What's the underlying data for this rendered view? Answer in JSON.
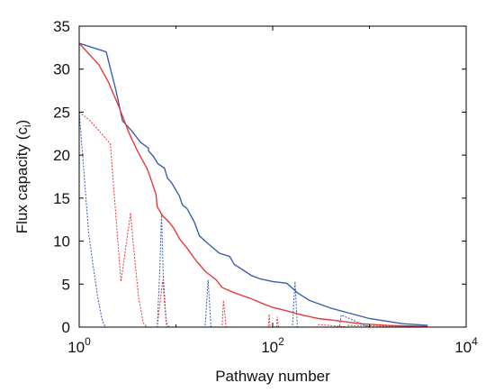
{
  "chart_data": {
    "type": "line",
    "title": "",
    "xlabel": "Pathway number",
    "ylabel_main": "Flux capacity (c",
    "ylabel_sub": "i",
    "ylabel_close": ")",
    "xscale": "log",
    "xlim": [
      1,
      10000
    ],
    "ylim": [
      0,
      35
    ],
    "grid": false,
    "legend": "none",
    "x_ticks": [
      {
        "value": 1,
        "base": "10",
        "exp": "0"
      },
      {
        "value": 100,
        "base": "10",
        "exp": "2"
      },
      {
        "value": 10000,
        "base": "10",
        "exp": "4"
      }
    ],
    "y_ticks": [
      "0",
      "5",
      "10",
      "15",
      "20",
      "25",
      "30",
      "35"
    ],
    "series": [
      {
        "color": "#3a5fb0",
        "style": "solid",
        "x": [
          1,
          1.9,
          2.4,
          2.8,
          3.5,
          4.3,
          5.2,
          5.2,
          5.9,
          6.5,
          7.6,
          8.2,
          9.0,
          10.8,
          11.7,
          13.0,
          15.5,
          17.5,
          22,
          28,
          36,
          40,
          50,
          60,
          75,
          100,
          140,
          180,
          240,
          400,
          1000,
          2200,
          4000
        ],
        "y": [
          33,
          32,
          27.5,
          24,
          22.8,
          21.5,
          20.8,
          20.5,
          19.8,
          19,
          18.5,
          17.3,
          16.8,
          15.3,
          14.2,
          13.8,
          12.2,
          10.6,
          9.6,
          8.6,
          8.2,
          7.3,
          6.6,
          6.0,
          5.6,
          5.3,
          5.1,
          4.0,
          3.1,
          2.2,
          1.0,
          0.4,
          0.2
        ]
      },
      {
        "color": "#e83a3a",
        "style": "solid",
        "x": [
          1,
          1.6,
          2.0,
          2.6,
          3.3,
          4.0,
          5.0,
          5.4,
          6.2,
          6.4,
          7.2,
          8.5,
          9.5,
          11,
          13,
          16,
          20,
          26,
          30,
          40,
          60,
          80,
          100,
          140,
          200,
          300,
          500,
          800,
          1500,
          3000,
          4000
        ],
        "y": [
          33,
          30.5,
          28.5,
          25.5,
          22.5,
          20.5,
          18.5,
          17.5,
          15.5,
          14,
          13.0,
          12.2,
          11.5,
          10.2,
          9.2,
          7.8,
          6.5,
          5.5,
          4.6,
          4.0,
          3.3,
          2.7,
          2.3,
          1.9,
          1.4,
          1.0,
          0.7,
          0.4,
          0.2,
          0.1,
          0.1
        ]
      },
      {
        "color": "#3a5fb0",
        "style": "dashed",
        "x": [
          1,
          1.12,
          1.25,
          1.4,
          1.55,
          1.7,
          1.8,
          1.9,
          6.4,
          6.8,
          7.1,
          7.4,
          8.0,
          20,
          21.5,
          23,
          100,
          160,
          170,
          180,
          300,
          490,
          510,
          1000
        ],
        "y": [
          25,
          18,
          11,
          7,
          3.5,
          1.2,
          0.3,
          0,
          0,
          6.5,
          13.2,
          6,
          0,
          0,
          5.5,
          0,
          0,
          0,
          5.3,
          0,
          0,
          0,
          1.4,
          0
        ]
      },
      {
        "color": "#e83a3a",
        "style": "dashed",
        "x": [
          1,
          1.3,
          1.7,
          2.1,
          2.7,
          3.4,
          3.6,
          4.1,
          4.6,
          5.0,
          6.4,
          7.3,
          7.9,
          8.5,
          30,
          31,
          33,
          90,
          92,
          94,
          110,
          111,
          115,
          300,
          300,
          600,
          601,
          4000
        ],
        "y": [
          25,
          24,
          22.5,
          21.3,
          5.3,
          13.3,
          10,
          3.5,
          0.5,
          0,
          0,
          5.5,
          0.6,
          0,
          0,
          3.1,
          0,
          0,
          1.5,
          0,
          0,
          1.2,
          0,
          0,
          0.3,
          0,
          0.2,
          0
        ]
      }
    ]
  }
}
